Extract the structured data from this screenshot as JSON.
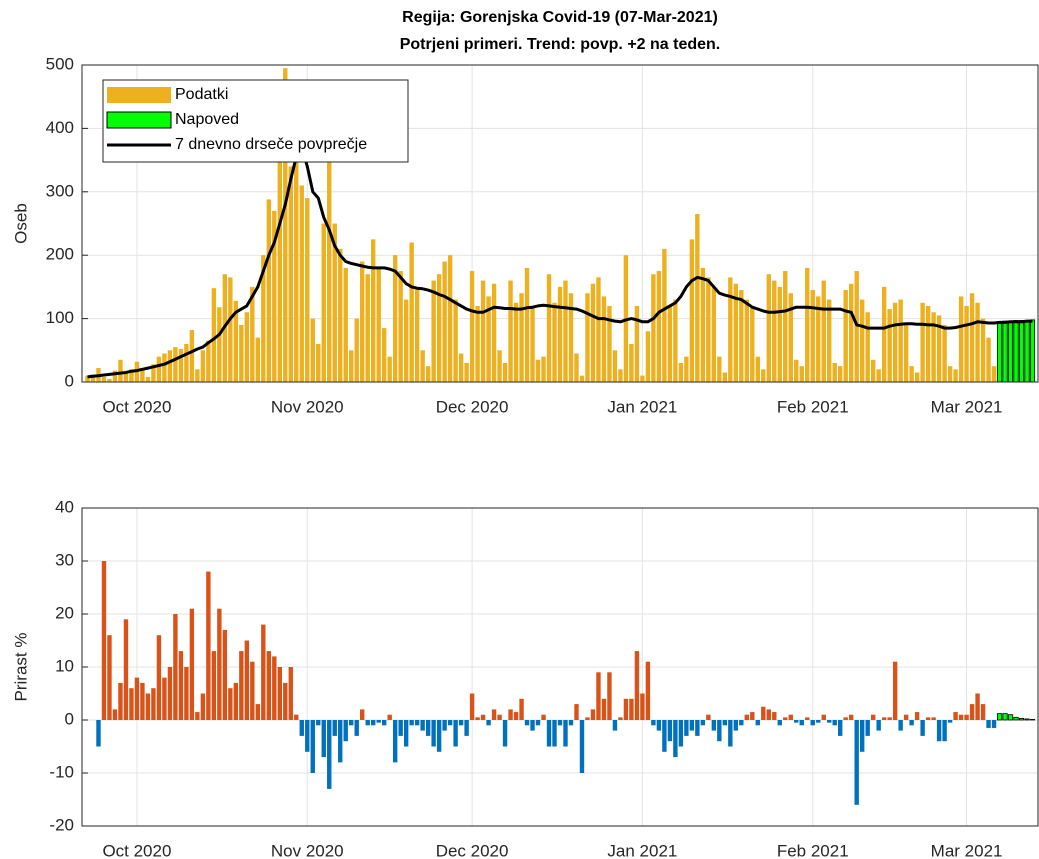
{
  "chart_data": [
    {
      "type": "bar",
      "title": "Regija: Gorenjska Covid-19 (07-Mar-2021)",
      "subtitle": "Potrjeni primeri. Trend: povp. +2 na teden.",
      "ylabel": "Oseb",
      "xlim": [
        -10,
        164
      ],
      "xticks": [
        {
          "value": 0,
          "label": "Oct 2020"
        },
        {
          "value": 31,
          "label": "Nov 2020"
        },
        {
          "value": 61,
          "label": "Dec 2020"
        },
        {
          "value": 92,
          "label": "Jan 2021"
        },
        {
          "value": 123,
          "label": "Feb 2021"
        },
        {
          "value": 151,
          "label": "Mar 2021"
        }
      ],
      "ylim": [
        0,
        500
      ],
      "yticks": [
        0,
        100,
        200,
        300,
        400,
        500
      ],
      "grid": true,
      "legend": "upper left",
      "series": [
        {
          "name": "Podatki",
          "color": "#edb120",
          "x": [
            -9,
            -8,
            -7,
            -6,
            -5,
            -4,
            -3,
            -2,
            -1,
            0,
            1,
            2,
            3,
            4,
            5,
            6,
            7,
            8,
            9,
            10,
            11,
            12,
            13,
            14,
            15,
            16,
            17,
            18,
            19,
            20,
            21,
            22,
            23,
            24,
            25,
            26,
            27,
            28,
            29,
            30,
            31,
            32,
            33,
            34,
            35,
            36,
            37,
            38,
            39,
            40,
            41,
            42,
            43,
            44,
            45,
            46,
            47,
            48,
            49,
            50,
            51,
            52,
            53,
            54,
            55,
            56,
            57,
            58,
            59,
            60,
            61,
            62,
            63,
            64,
            65,
            66,
            67,
            68,
            69,
            70,
            71,
            72,
            73,
            74,
            75,
            76,
            77,
            78,
            79,
            80,
            81,
            82,
            83,
            84,
            85,
            86,
            87,
            88,
            89,
            90,
            91,
            92,
            93,
            94,
            95,
            96,
            97,
            98,
            99,
            100,
            101,
            102,
            103,
            104,
            105,
            106,
            107,
            108,
            109,
            110,
            111,
            112,
            113,
            114,
            115,
            116,
            117,
            118,
            119,
            120,
            121,
            122,
            123,
            124,
            125,
            126,
            127,
            128,
            129,
            130,
            131,
            132,
            133,
            134,
            135,
            136,
            137,
            138,
            139,
            140,
            141,
            142,
            143,
            144,
            145,
            146,
            147,
            148,
            149,
            150,
            151,
            152,
            153,
            154,
            155,
            156
          ],
          "values": [
            10,
            12,
            22,
            8,
            5,
            18,
            35,
            15,
            20,
            32,
            22,
            8,
            28,
            40,
            45,
            50,
            55,
            52,
            60,
            82,
            20,
            50,
            65,
            148,
            118,
            170,
            165,
            128,
            90,
            110,
            150,
            70,
            200,
            288,
            270,
            420,
            495,
            340,
            380,
            310,
            290,
            100,
            60,
            250,
            370,
            250,
            210,
            180,
            50,
            100,
            190,
            170,
            225,
            180,
            85,
            40,
            200,
            175,
            130,
            220,
            150,
            50,
            25,
            160,
            170,
            190,
            200,
            130,
            45,
            30,
            175,
            120,
            160,
            135,
            155,
            50,
            30,
            160,
            125,
            140,
            180,
            120,
            35,
            40,
            170,
            125,
            150,
            160,
            140,
            45,
            10,
            140,
            155,
            165,
            135,
            120,
            50,
            20,
            200,
            60,
            120,
            10,
            80,
            170,
            175,
            210,
            120,
            130,
            30,
            40,
            225,
            265,
            180,
            165,
            150,
            40,
            15,
            165,
            155,
            145,
            130,
            120,
            40,
            20,
            170,
            160,
            150,
            175,
            140,
            35,
            25,
            180,
            145,
            135,
            160,
            130,
            30,
            25,
            145,
            155,
            175,
            130,
            110,
            35,
            20,
            150,
            115,
            125,
            130,
            90,
            25,
            15,
            125,
            120,
            110,
            105,
            90,
            25,
            20,
            135,
            120,
            140,
            125,
            100,
            70,
            25
          ]
        },
        {
          "name": "Napoved",
          "color": "#00ff00",
          "edgecolor": "#000000",
          "x": [
            157,
            158,
            159,
            160,
            161,
            162,
            163
          ],
          "values": [
            95,
            96,
            96,
            97,
            97,
            97,
            98
          ]
        },
        {
          "name": "7 dnevno drseče povprečje",
          "type": "line",
          "color": "#000000",
          "x": [
            -9,
            -8,
            -7,
            -6,
            -5,
            -4,
            -3,
            -2,
            -1,
            0,
            1,
            2,
            3,
            4,
            5,
            6,
            7,
            8,
            9,
            10,
            11,
            12,
            13,
            14,
            15,
            16,
            17,
            18,
            19,
            20,
            21,
            22,
            23,
            24,
            25,
            26,
            27,
            28,
            29,
            30,
            31,
            32,
            33,
            34,
            35,
            36,
            37,
            38,
            39,
            40,
            41,
            42,
            43,
            44,
            45,
            46,
            47,
            48,
            49,
            50,
            51,
            52,
            53,
            54,
            55,
            56,
            57,
            58,
            59,
            60,
            61,
            62,
            63,
            64,
            65,
            66,
            67,
            68,
            69,
            70,
            71,
            72,
            73,
            74,
            75,
            76,
            77,
            78,
            79,
            80,
            81,
            82,
            83,
            84,
            85,
            86,
            87,
            88,
            89,
            90,
            91,
            92,
            93,
            94,
            95,
            96,
            97,
            98,
            99,
            100,
            101,
            102,
            103,
            104,
            105,
            106,
            107,
            108,
            109,
            110,
            111,
            112,
            113,
            114,
            115,
            116,
            117,
            118,
            119,
            120,
            121,
            122,
            123,
            124,
            125,
            126,
            127,
            128,
            129,
            130,
            131,
            132,
            133,
            134,
            135,
            136,
            137,
            138,
            139,
            140,
            141,
            142,
            143,
            144,
            145,
            146,
            147,
            148,
            149,
            150,
            151,
            152,
            153,
            154,
            155,
            156,
            157,
            158,
            159,
            160,
            161,
            162,
            163
          ],
          "values": [
            8,
            9,
            10,
            11,
            12,
            13,
            14,
            15,
            17,
            18,
            20,
            22,
            24,
            26,
            28,
            32,
            36,
            40,
            44,
            48,
            52,
            55,
            62,
            68,
            75,
            88,
            100,
            110,
            115,
            120,
            135,
            150,
            175,
            200,
            220,
            250,
            280,
            320,
            355,
            370,
            340,
            300,
            290,
            260,
            240,
            215,
            200,
            190,
            187,
            185,
            183,
            181,
            180,
            180,
            180,
            178,
            175,
            165,
            155,
            150,
            148,
            147,
            145,
            142,
            138,
            135,
            130,
            125,
            120,
            115,
            112,
            110,
            110,
            114,
            118,
            117,
            116,
            116,
            115,
            115,
            117,
            118,
            120,
            121,
            120,
            119,
            118,
            117,
            116,
            115,
            112,
            108,
            104,
            100,
            100,
            98,
            96,
            95,
            98,
            100,
            98,
            95,
            95,
            100,
            110,
            115,
            120,
            125,
            135,
            150,
            160,
            165,
            163,
            160,
            150,
            140,
            137,
            135,
            132,
            130,
            124,
            118,
            115,
            112,
            110,
            110,
            111,
            112,
            115,
            118,
            118,
            118,
            117,
            116,
            115,
            115,
            115,
            115,
            112,
            110,
            90,
            88,
            85,
            85,
            85,
            85,
            88,
            90,
            91,
            92,
            92,
            91,
            91,
            90,
            90,
            88,
            85,
            85,
            86,
            88,
            90,
            92,
            95,
            94,
            93,
            93,
            94,
            94,
            95,
            95,
            95,
            96,
            96
          ]
        }
      ]
    },
    {
      "type": "bar",
      "ylabel": "Prirast %",
      "xlim": [
        -10,
        164
      ],
      "xticks": [
        {
          "value": 0,
          "label": "Oct 2020"
        },
        {
          "value": 31,
          "label": "Nov 2020"
        },
        {
          "value": 61,
          "label": "Dec 2020"
        },
        {
          "value": 92,
          "label": "Jan 2021"
        },
        {
          "value": 123,
          "label": "Feb 2021"
        },
        {
          "value": 151,
          "label": "Mar 2021"
        }
      ],
      "ylim": [
        -20,
        40
      ],
      "yticks": [
        -20,
        -10,
        0,
        10,
        20,
        30,
        40
      ],
      "grid": true,
      "series": [
        {
          "color": "#d95319",
          "negative_color": "#0072bd",
          "x": [
            -7,
            -6,
            -5,
            -4,
            -3,
            -2,
            -1,
            0,
            1,
            2,
            3,
            4,
            5,
            6,
            7,
            8,
            9,
            10,
            11,
            12,
            13,
            14,
            15,
            16,
            17,
            18,
            19,
            20,
            21,
            22,
            23,
            24,
            25,
            26,
            27,
            28,
            29,
            30,
            31,
            32,
            33,
            34,
            35,
            36,
            37,
            38,
            39,
            40,
            41,
            42,
            43,
            44,
            45,
            46,
            47,
            48,
            49,
            50,
            51,
            52,
            53,
            54,
            55,
            56,
            57,
            58,
            59,
            60,
            61,
            62,
            63,
            64,
            65,
            66,
            67,
            68,
            69,
            70,
            71,
            72,
            73,
            74,
            75,
            76,
            77,
            78,
            79,
            80,
            81,
            82,
            83,
            84,
            85,
            86,
            87,
            88,
            89,
            90,
            91,
            92,
            93,
            94,
            95,
            96,
            97,
            98,
            99,
            100,
            101,
            102,
            103,
            104,
            105,
            106,
            107,
            108,
            109,
            110,
            111,
            112,
            113,
            114,
            115,
            116,
            117,
            118,
            119,
            120,
            121,
            122,
            123,
            124,
            125,
            126,
            127,
            128,
            129,
            130,
            131,
            132,
            133,
            134,
            135,
            136,
            137,
            138,
            139,
            140,
            141,
            142,
            143,
            144,
            145,
            146,
            147,
            148,
            149,
            150,
            151,
            152,
            153,
            154,
            155,
            156
          ],
          "values": [
            -5,
            30,
            16,
            2,
            7,
            19,
            6,
            8,
            7,
            5,
            6,
            16,
            8,
            10,
            20,
            13,
            10,
            21,
            1.5,
            5,
            28,
            13,
            21,
            17,
            6,
            7,
            13,
            15,
            11,
            3,
            18,
            13,
            12,
            10,
            7,
            10,
            1,
            -3,
            -6,
            -10,
            -1,
            -7,
            -13,
            -3,
            -8,
            -4,
            -1,
            -3,
            2,
            -1,
            -1,
            -0.5,
            -1,
            1,
            -8,
            -3,
            -5,
            -1,
            -1,
            -2,
            -3,
            -5,
            -6,
            -2,
            -1,
            -5,
            -1,
            -3,
            5,
            0.5,
            1,
            -1,
            2,
            1,
            -5,
            2,
            1.5,
            4,
            -1,
            -2,
            -1,
            1,
            -5,
            -5,
            -1,
            -5,
            -1,
            3,
            -10,
            0.5,
            2,
            9,
            4,
            9,
            -2,
            0.5,
            4,
            4,
            13,
            5,
            11,
            -1,
            -2,
            -6,
            -4,
            -7,
            -5,
            -3,
            -2,
            -3,
            -1,
            1,
            -2,
            -4,
            -1,
            -5,
            -2,
            -1,
            1,
            1.5,
            -1,
            2.5,
            2,
            1.5,
            -1,
            0.5,
            1,
            -0.5,
            -1,
            0.5,
            -1,
            -0.5,
            1,
            -0.5,
            -1,
            -3,
            0.5,
            1,
            -16,
            -6,
            -3,
            1,
            -2,
            0.5,
            0.5,
            11,
            -2,
            1,
            -1,
            1.5,
            -3,
            0.5,
            0.5,
            -4,
            -4,
            -0.5,
            1.5,
            1,
            1,
            3,
            5,
            3,
            -1.5,
            -1.5
          ]
        },
        {
          "color": "#00ff00",
          "edgecolor": "#000000",
          "x": [
            157,
            158,
            159,
            160,
            161,
            162,
            163
          ],
          "values": [
            1.2,
            1.2,
            1,
            0.5,
            0.3,
            0.2,
            0.1
          ]
        }
      ]
    }
  ]
}
